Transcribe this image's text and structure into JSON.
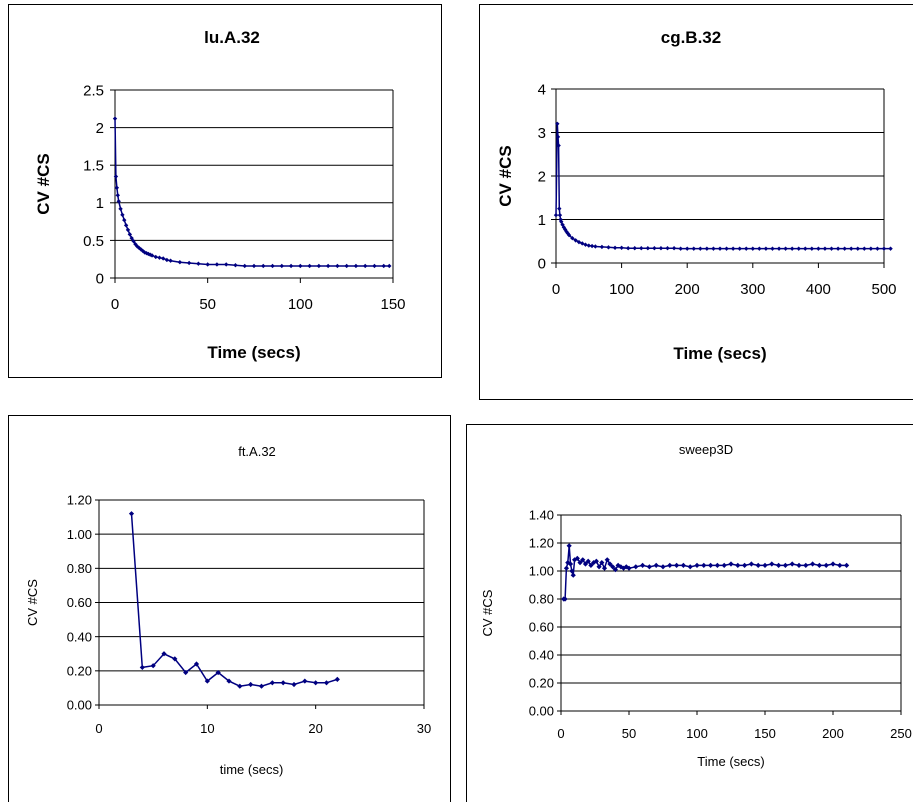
{
  "chart_data": [
    {
      "type": "line",
      "title": "lu.A.32",
      "xlabel": "Time (secs)",
      "ylabel": "CV #CS",
      "xlim": [
        0,
        150
      ],
      "ylim": [
        0,
        2.5
      ],
      "x_ticks": [
        "0",
        "50",
        "100",
        "150"
      ],
      "y_ticks": [
        "0",
        "0.5",
        "1",
        "1.5",
        "2",
        "2.5"
      ],
      "grid": "horizontal",
      "color": "#000080",
      "marker_step": 1,
      "series": [
        {
          "x": [
            0,
            0.5,
            1,
            1.5,
            2,
            3,
            4,
            5,
            6,
            7,
            8,
            9,
            10,
            11,
            12,
            13,
            14,
            15,
            16,
            17,
            18,
            19,
            20,
            22,
            24,
            26,
            28,
            30,
            35,
            40,
            45,
            50,
            55,
            60,
            65,
            70,
            75,
            80,
            85,
            90,
            95,
            100,
            105,
            110,
            115,
            120,
            125,
            130,
            135,
            140,
            145,
            148
          ],
          "y": [
            2.12,
            1.35,
            1.2,
            1.1,
            1.02,
            0.92,
            0.84,
            0.77,
            0.7,
            0.64,
            0.58,
            0.53,
            0.49,
            0.45,
            0.42,
            0.4,
            0.38,
            0.36,
            0.34,
            0.33,
            0.32,
            0.31,
            0.3,
            0.28,
            0.27,
            0.26,
            0.24,
            0.23,
            0.21,
            0.2,
            0.19,
            0.18,
            0.18,
            0.18,
            0.17,
            0.16,
            0.16,
            0.16,
            0.16,
            0.16,
            0.16,
            0.16,
            0.16,
            0.16,
            0.16,
            0.16,
            0.16,
            0.16,
            0.16,
            0.16,
            0.16,
            0.16
          ]
        }
      ]
    },
    {
      "type": "line",
      "title": "cg.B.32",
      "xlabel": "Time (secs)",
      "ylabel": "CV #CS",
      "xlim": [
        0,
        500
      ],
      "ylim": [
        0,
        4
      ],
      "x_ticks": [
        "0",
        "100",
        "200",
        "300",
        "400",
        "500"
      ],
      "y_ticks": [
        "0",
        "1",
        "2",
        "3",
        "4"
      ],
      "grid": "horizontal",
      "color": "#000080",
      "marker_step": 1,
      "series": [
        {
          "x": [
            0,
            2,
            3,
            4,
            5,
            6,
            7,
            8,
            10,
            12,
            14,
            16,
            18,
            20,
            25,
            30,
            35,
            40,
            45,
            50,
            55,
            60,
            70,
            80,
            90,
            100,
            110,
            120,
            130,
            140,
            150,
            160,
            170,
            180,
            190,
            200,
            210,
            220,
            230,
            240,
            250,
            260,
            270,
            280,
            290,
            300,
            310,
            320,
            330,
            340,
            350,
            360,
            370,
            380,
            390,
            400,
            410,
            420,
            430,
            440,
            450,
            460,
            470,
            480,
            490,
            500,
            510
          ],
          "y": [
            1.1,
            3.2,
            2.9,
            2.7,
            1.25,
            1.1,
            1.0,
            0.95,
            0.88,
            0.82,
            0.77,
            0.72,
            0.68,
            0.64,
            0.57,
            0.52,
            0.48,
            0.45,
            0.42,
            0.4,
            0.39,
            0.38,
            0.37,
            0.36,
            0.35,
            0.35,
            0.34,
            0.34,
            0.34,
            0.34,
            0.34,
            0.34,
            0.34,
            0.34,
            0.33,
            0.33,
            0.33,
            0.33,
            0.33,
            0.33,
            0.33,
            0.33,
            0.33,
            0.33,
            0.33,
            0.33,
            0.33,
            0.33,
            0.33,
            0.33,
            0.33,
            0.33,
            0.33,
            0.33,
            0.33,
            0.33,
            0.33,
            0.33,
            0.33,
            0.33,
            0.33,
            0.33,
            0.33,
            0.33,
            0.33,
            0.33,
            0.33
          ]
        }
      ]
    },
    {
      "type": "line",
      "title": "ft.A.32",
      "xlabel": "time (secs)",
      "ylabel": "CV #CS",
      "xlim": [
        0,
        30
      ],
      "ylim": [
        0,
        1.2
      ],
      "x_ticks": [
        "0",
        "10",
        "20",
        "30"
      ],
      "y_ticks": [
        "0.00",
        "0.20",
        "0.40",
        "0.60",
        "0.80",
        "1.00",
        "1.20"
      ],
      "grid": "horizontal",
      "color": "#000080",
      "marker_step": 1,
      "series": [
        {
          "x": [
            3,
            4,
            5,
            6,
            7,
            8,
            9,
            10,
            11,
            12,
            13,
            14,
            15,
            16,
            17,
            18,
            19,
            20,
            21,
            22
          ],
          "y": [
            1.12,
            0.22,
            0.23,
            0.3,
            0.27,
            0.19,
            0.24,
            0.14,
            0.19,
            0.14,
            0.11,
            0.12,
            0.11,
            0.13,
            0.13,
            0.12,
            0.14,
            0.13,
            0.13,
            0.15
          ]
        }
      ]
    },
    {
      "type": "line",
      "title": "sweep3D",
      "xlabel": "Time (secs)",
      "ylabel": "CV #CS",
      "xlim": [
        0,
        250
      ],
      "ylim": [
        0,
        1.4
      ],
      "x_ticks": [
        "0",
        "50",
        "100",
        "150",
        "200",
        "250"
      ],
      "y_ticks": [
        "0.00",
        "0.20",
        "0.40",
        "0.60",
        "0.80",
        "1.00",
        "1.20",
        "1.40"
      ],
      "grid": "horizontal",
      "color": "#000080",
      "marker_step": 1,
      "series": [
        {
          "x": [
            2,
            3,
            4,
            5,
            6,
            7,
            8,
            9,
            10,
            12,
            14,
            16,
            18,
            20,
            22,
            24,
            26,
            28,
            30,
            32,
            34,
            36,
            38,
            40,
            42,
            44,
            46,
            48,
            50,
            55,
            60,
            65,
            70,
            75,
            80,
            85,
            90,
            95,
            100,
            105,
            110,
            115,
            120,
            125,
            130,
            135,
            140,
            145,
            150,
            155,
            160,
            165,
            170,
            175,
            180,
            185,
            190,
            195,
            200,
            205,
            210
          ],
          "y": [
            0.8,
            0.8,
            1.02,
            1.06,
            1.18,
            1.05,
            1.0,
            0.97,
            1.08,
            1.09,
            1.06,
            1.08,
            1.05,
            1.07,
            1.04,
            1.06,
            1.07,
            1.03,
            1.06,
            1.02,
            1.08,
            1.05,
            1.03,
            1.01,
            1.04,
            1.03,
            1.02,
            1.03,
            1.02,
            1.03,
            1.04,
            1.03,
            1.04,
            1.03,
            1.04,
            1.04,
            1.04,
            1.03,
            1.04,
            1.04,
            1.04,
            1.04,
            1.04,
            1.05,
            1.04,
            1.04,
            1.05,
            1.04,
            1.04,
            1.05,
            1.04,
            1.04,
            1.05,
            1.04,
            1.04,
            1.05,
            1.04,
            1.04,
            1.05,
            1.04,
            1.04
          ]
        }
      ]
    }
  ]
}
